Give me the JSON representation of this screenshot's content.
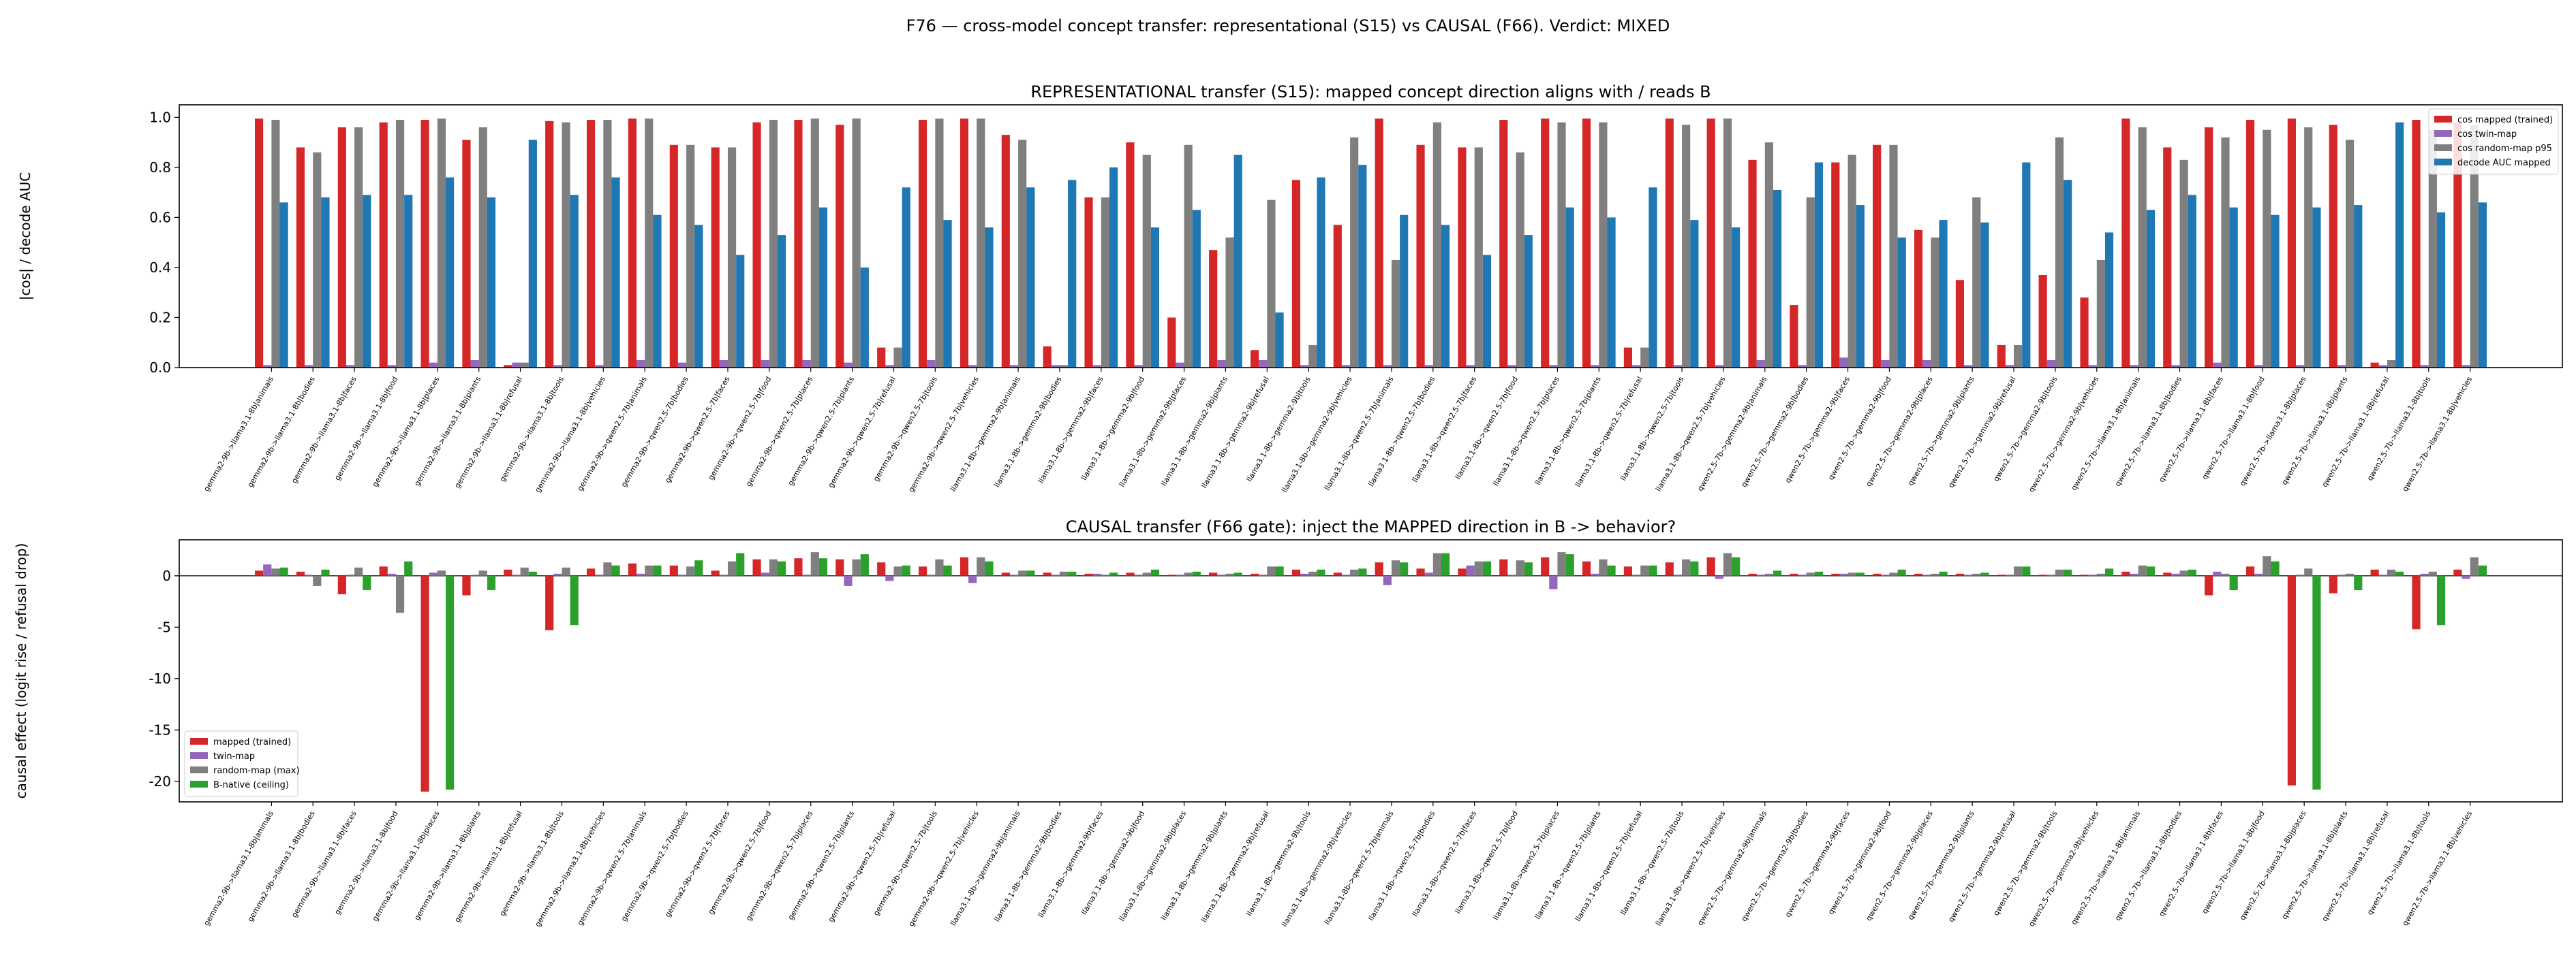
{
  "figure": {
    "suptitle": "F76 — cross-model concept transfer: representational (S15) vs CAUSAL (F66). Verdict: MIXED"
  },
  "colors": {
    "mapped": "#d62728",
    "twin": "#9467bd",
    "random": "#7f7f7f",
    "native": "#1f77b4",
    "native_green": "#2ca02c"
  },
  "chart_data": [
    {
      "type": "bar",
      "title": "REPRESENTATIONAL transfer (S15): mapped concept direction aligns with / reads B",
      "xlabel": "",
      "ylabel": "|cos| / decode AUC",
      "ylim": [
        0,
        1.05
      ],
      "yticks": [
        0.0,
        0.2,
        0.4,
        0.6,
        0.8,
        1.0
      ],
      "grid": false,
      "legend_position": "upper-right",
      "categories": [
        "gemma2-9b->llama3.1-8b|animals",
        "gemma2-9b->llama3.1-8b|bodies",
        "gemma2-9b->llama3.1-8b|faces",
        "gemma2-9b->llama3.1-8b|food",
        "gemma2-9b->llama3.1-8b|places",
        "gemma2-9b->llama3.1-8b|plants",
        "gemma2-9b->llama3.1-8b|refusal",
        "gemma2-9b->llama3.1-8b|tools",
        "gemma2-9b->llama3.1-8b|vehicles",
        "gemma2-9b->qwen2.5-7b|animals",
        "gemma2-9b->qwen2.5-7b|bodies",
        "gemma2-9b->qwen2.5-7b|faces",
        "gemma2-9b->qwen2.5-7b|food",
        "gemma2-9b->qwen2.5-7b|places",
        "gemma2-9b->qwen2.5-7b|plants",
        "gemma2-9b->qwen2.5-7b|refusal",
        "gemma2-9b->qwen2.5-7b|tools",
        "gemma2-9b->qwen2.5-7b|vehicles",
        "llama3.1-8b->gemma2-9b|animals",
        "llama3.1-8b->gemma2-9b|bodies",
        "llama3.1-8b->gemma2-9b|faces",
        "llama3.1-8b->gemma2-9b|food",
        "llama3.1-8b->gemma2-9b|places",
        "llama3.1-8b->gemma2-9b|plants",
        "llama3.1-8b->gemma2-9b|refusal",
        "llama3.1-8b->gemma2-9b|tools",
        "llama3.1-8b->gemma2-9b|vehicles",
        "llama3.1-8b->qwen2.5-7b|animals",
        "llama3.1-8b->qwen2.5-7b|bodies",
        "llama3.1-8b->qwen2.5-7b|faces",
        "llama3.1-8b->qwen2.5-7b|food",
        "llama3.1-8b->qwen2.5-7b|places",
        "llama3.1-8b->qwen2.5-7b|plants",
        "llama3.1-8b->qwen2.5-7b|refusal",
        "llama3.1-8b->qwen2.5-7b|tools",
        "llama3.1-8b->qwen2.5-7b|vehicles",
        "qwen2.5-7b->gemma2-9b|animals",
        "qwen2.5-7b->gemma2-9b|bodies",
        "qwen2.5-7b->gemma2-9b|faces",
        "qwen2.5-7b->gemma2-9b|food",
        "qwen2.5-7b->gemma2-9b|places",
        "qwen2.5-7b->gemma2-9b|plants",
        "qwen2.5-7b->gemma2-9b|refusal",
        "qwen2.5-7b->gemma2-9b|tools",
        "qwen2.5-7b->gemma2-9b|vehicles",
        "qwen2.5-7b->llama3.1-8b|animals",
        "qwen2.5-7b->llama3.1-8b|bodies",
        "qwen2.5-7b->llama3.1-8b|faces",
        "qwen2.5-7b->llama3.1-8b|food",
        "qwen2.5-7b->llama3.1-8b|places",
        "qwen2.5-7b->llama3.1-8b|plants",
        "qwen2.5-7b->llama3.1-8b|refusal",
        "qwen2.5-7b->llama3.1-8b|tools",
        "qwen2.5-7b->llama3.1-8b|vehicles"
      ],
      "series": [
        {
          "name": "cos mapped (trained)",
          "color_key": "mapped",
          "values": [
            0.995,
            0.88,
            0.96,
            0.98,
            0.99,
            0.91,
            0.01,
            0.985,
            0.99,
            0.995,
            0.89,
            0.88,
            0.98,
            0.99,
            0.97,
            0.08,
            0.99,
            0.995,
            0.93,
            0.085,
            0.68,
            0.9,
            0.2,
            0.47,
            0.07,
            0.75,
            0.57,
            0.995,
            0.89,
            0.88,
            0.99,
            0.995,
            0.995,
            0.08,
            0.995,
            0.995,
            0.83,
            0.25,
            0.82,
            0.89,
            0.55,
            0.35,
            0.09,
            0.37,
            0.28,
            0.995,
            0.88,
            0.96,
            0.99,
            0.995,
            0.97,
            0.02,
            0.99,
            0.98
          ]
        },
        {
          "name": "cos twin-map",
          "color_key": "twin",
          "values": [
            0.01,
            0.01,
            0.01,
            0.01,
            0.02,
            0.03,
            0.02,
            0.01,
            0.01,
            0.03,
            0.02,
            0.03,
            0.03,
            0.03,
            0.02,
            0.01,
            0.03,
            0.01,
            0.01,
            0.01,
            0.01,
            0.01,
            0.02,
            0.03,
            0.03,
            0.01,
            0.01,
            0.01,
            0.01,
            0.01,
            0.01,
            0.01,
            0.01,
            0.01,
            0.01,
            0.01,
            0.03,
            0.01,
            0.04,
            0.03,
            0.03,
            0.01,
            0.01,
            0.03,
            0.01,
            0.01,
            0.01,
            0.02,
            0.01,
            0.01,
            0.01,
            0.01,
            0.01,
            0.01
          ]
        },
        {
          "name": "cos random-map p95",
          "color_key": "random",
          "values": [
            0.99,
            0.86,
            0.96,
            0.99,
            0.995,
            0.96,
            0.02,
            0.98,
            0.99,
            0.995,
            0.89,
            0.88,
            0.99,
            0.995,
            0.995,
            0.08,
            0.995,
            0.995,
            0.91,
            0.01,
            0.68,
            0.85,
            0.89,
            0.52,
            0.67,
            0.09,
            0.92,
            0.43,
            0.98,
            0.88,
            0.86,
            0.98,
            0.98,
            0.08,
            0.97,
            0.995,
            0.9,
            0.68,
            0.85,
            0.89,
            0.52,
            0.68,
            0.09,
            0.92,
            0.43,
            0.96,
            0.83,
            0.92,
            0.95,
            0.96,
            0.91,
            0.03,
            0.95,
            0.97
          ]
        },
        {
          "name": "decode AUC mapped",
          "color_key": "native",
          "values": [
            0.66,
            0.68,
            0.69,
            0.69,
            0.76,
            0.68,
            0.91,
            0.69,
            0.76,
            0.61,
            0.57,
            0.45,
            0.53,
            0.64,
            0.4,
            0.72,
            0.59,
            0.56,
            0.72,
            0.75,
            0.8,
            0.56,
            0.63,
            0.85,
            0.22,
            0.76,
            0.81,
            0.61,
            0.57,
            0.45,
            0.53,
            0.64,
            0.6,
            0.72,
            0.59,
            0.56,
            0.71,
            0.82,
            0.65,
            0.52,
            0.59,
            0.58,
            0.82,
            0.75,
            0.54,
            0.63,
            0.69,
            0.64,
            0.61,
            0.64,
            0.65,
            0.98,
            0.62,
            0.66
          ]
        }
      ]
    },
    {
      "type": "bar",
      "title": "CAUSAL transfer (F66 gate): inject the MAPPED direction in B -> behavior?",
      "xlabel": "",
      "ylabel": "causal effect (logit rise / refusal drop)",
      "ylim": [
        -22,
        3.5
      ],
      "yticks": [
        -20,
        -15,
        -10,
        -5,
        0
      ],
      "grid": false,
      "legend_position": "lower-left",
      "reference_line": 0,
      "categories_ref": "same as representational chart",
      "series": [
        {
          "name": "mapped (trained)",
          "color_key": "mapped",
          "values": [
            0.5,
            0.4,
            -1.8,
            0.9,
            -21.0,
            -1.9,
            0.6,
            -5.3,
            0.7,
            1.2,
            1.0,
            0.5,
            1.6,
            1.7,
            1.6,
            1.3,
            0.9,
            1.8,
            0.3,
            0.3,
            0.2,
            0.3,
            0.1,
            0.3,
            0.2,
            0.6,
            0.3,
            1.3,
            0.7,
            0.7,
            1.6,
            1.8,
            1.4,
            0.9,
            1.3,
            1.8,
            0.2,
            0.2,
            0.2,
            0.2,
            0.2,
            0.2,
            0.1,
            0.1,
            0.1,
            0.4,
            0.3,
            -1.9,
            0.9,
            -20.4,
            -1.7,
            0.6,
            -5.2,
            0.6
          ]
        },
        {
          "name": "twin-map",
          "color_key": "twin",
          "values": [
            1.1,
            0.1,
            0.1,
            0.2,
            0.3,
            0.1,
            0.1,
            0.2,
            0.1,
            0.2,
            0.1,
            0.1,
            0.3,
            0.1,
            -1.0,
            -0.5,
            0.1,
            -0.7,
            0.1,
            0.1,
            0.2,
            0.1,
            0.1,
            0.1,
            0.1,
            0.2,
            0.1,
            -0.9,
            0.3,
            1.0,
            0.1,
            -1.3,
            0.2,
            0.1,
            0.1,
            -0.3,
            0.1,
            0.1,
            0.2,
            0.1,
            0.1,
            0.1,
            0.1,
            0.1,
            0.1,
            0.2,
            0.2,
            0.4,
            0.2,
            0.1,
            0.1,
            0.1,
            0.2,
            -0.3
          ]
        },
        {
          "name": "random-map (max)",
          "color_key": "random",
          "values": [
            0.7,
            -1.0,
            0.8,
            -3.6,
            0.5,
            0.5,
            0.8,
            0.8,
            1.3,
            1.0,
            0.9,
            1.4,
            1.6,
            2.3,
            1.6,
            0.9,
            1.6,
            1.8,
            0.5,
            0.4,
            0.1,
            0.3,
            0.3,
            0.2,
            0.9,
            0.4,
            0.6,
            1.5,
            2.2,
            1.4,
            1.5,
            2.3,
            1.6,
            1.0,
            1.6,
            2.2,
            0.2,
            0.3,
            0.3,
            0.3,
            0.2,
            0.2,
            0.9,
            0.6,
            0.2,
            1.0,
            0.5,
            0.2,
            1.9,
            0.7,
            0.2,
            0.6,
            0.4,
            1.8
          ]
        },
        {
          "name": "B-native (ceiling)",
          "color_key": "native_green",
          "values": [
            0.8,
            0.6,
            -1.4,
            1.4,
            -20.8,
            -1.4,
            0.4,
            -4.8,
            1.0,
            1.0,
            1.5,
            2.2,
            1.4,
            1.7,
            2.1,
            1.0,
            1.0,
            1.4,
            0.5,
            0.4,
            0.3,
            0.6,
            0.4,
            0.3,
            0.9,
            0.6,
            0.7,
            1.3,
            2.2,
            1.4,
            1.3,
            2.1,
            1.0,
            1.0,
            1.4,
            1.8,
            0.5,
            0.4,
            0.3,
            0.6,
            0.4,
            0.3,
            0.9,
            0.6,
            0.7,
            0.9,
            0.6,
            -1.4,
            1.4,
            -20.8,
            -1.4,
            0.4,
            -4.8,
            1.0
          ]
        }
      ]
    }
  ]
}
